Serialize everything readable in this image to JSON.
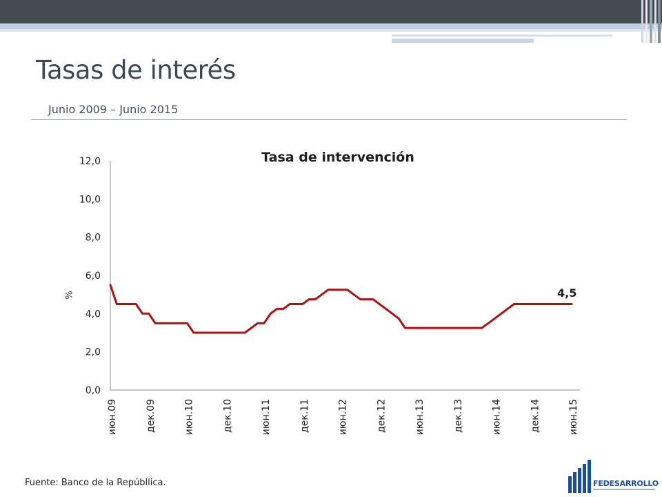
{
  "slide": {
    "title": "Tasas de interés",
    "subtitle": "Junio 2009 – Junio 2015",
    "source": "Fuente: Banco de la Repúbllica.",
    "logo_text": "FEDESARROLLO"
  },
  "colors": {
    "series": "#b01010",
    "title_text": "#404754",
    "header_dark": "#464b52",
    "header_light": "#bfcedd",
    "brand_blue": "#1b4f9c"
  },
  "chart_data": {
    "type": "line",
    "title": "Tasa de intervención",
    "ylabel": "%",
    "xlabel": "",
    "ylim": [
      0,
      12
    ],
    "yticks": [
      "0,0",
      "2,0",
      "4,0",
      "6,0",
      "8,0",
      "10,0",
      "12,0"
    ],
    "ytick_values": [
      0,
      2,
      4,
      6,
      8,
      10,
      12
    ],
    "categories": [
      "июн.09",
      "дек.09",
      "июн.10",
      "дек.10",
      "июн.11",
      "дек.11",
      "июн.12",
      "дек.12",
      "июн.13",
      "дек.13",
      "июн.14",
      "дек.14",
      "июн.15"
    ],
    "grid": false,
    "legend": "none",
    "end_label": "4,5",
    "series": [
      {
        "x": [
          "2009-06",
          "2009-07",
          "2009-08",
          "2009-09",
          "2009-10",
          "2009-11",
          "2009-12",
          "2010-01",
          "2010-02",
          "2010-03",
          "2010-04",
          "2010-05",
          "2010-06",
          "2010-07",
          "2010-08",
          "2010-09",
          "2010-10",
          "2010-11",
          "2010-12",
          "2011-01",
          "2011-02",
          "2011-03",
          "2011-04",
          "2011-05",
          "2011-06",
          "2011-07",
          "2011-08",
          "2011-09",
          "2011-10",
          "2011-11",
          "2011-12",
          "2012-01",
          "2012-02",
          "2012-03",
          "2012-04",
          "2012-05",
          "2012-06",
          "2012-07",
          "2012-08",
          "2012-09",
          "2012-10",
          "2012-11",
          "2012-12",
          "2013-01",
          "2013-02",
          "2013-03",
          "2013-04",
          "2013-05",
          "2013-06",
          "2013-07",
          "2013-08",
          "2013-09",
          "2013-10",
          "2013-11",
          "2013-12",
          "2014-01",
          "2014-02",
          "2014-03",
          "2014-04",
          "2014-05",
          "2014-06",
          "2014-07",
          "2014-08",
          "2014-09",
          "2014-10",
          "2014-11",
          "2014-12",
          "2015-01",
          "2015-02",
          "2015-03",
          "2015-04",
          "2015-05",
          "2015-06"
        ],
        "values": [
          5.5,
          4.5,
          4.5,
          4.5,
          4.5,
          4.0,
          4.0,
          3.5,
          3.5,
          3.5,
          3.5,
          3.5,
          3.5,
          3.0,
          3.0,
          3.0,
          3.0,
          3.0,
          3.0,
          3.0,
          3.0,
          3.0,
          3.25,
          3.5,
          3.5,
          4.0,
          4.25,
          4.25,
          4.5,
          4.5,
          4.5,
          4.75,
          4.75,
          5.0,
          5.25,
          5.25,
          5.25,
          5.25,
          5.0,
          4.75,
          4.75,
          4.75,
          4.5,
          4.25,
          4.0,
          3.75,
          3.25,
          3.25,
          3.25,
          3.25,
          3.25,
          3.25,
          3.25,
          3.25,
          3.25,
          3.25,
          3.25,
          3.25,
          3.25,
          3.5,
          3.75,
          4.0,
          4.25,
          4.5,
          4.5,
          4.5,
          4.5,
          4.5,
          4.5,
          4.5,
          4.5,
          4.5,
          4.5
        ]
      }
    ]
  }
}
